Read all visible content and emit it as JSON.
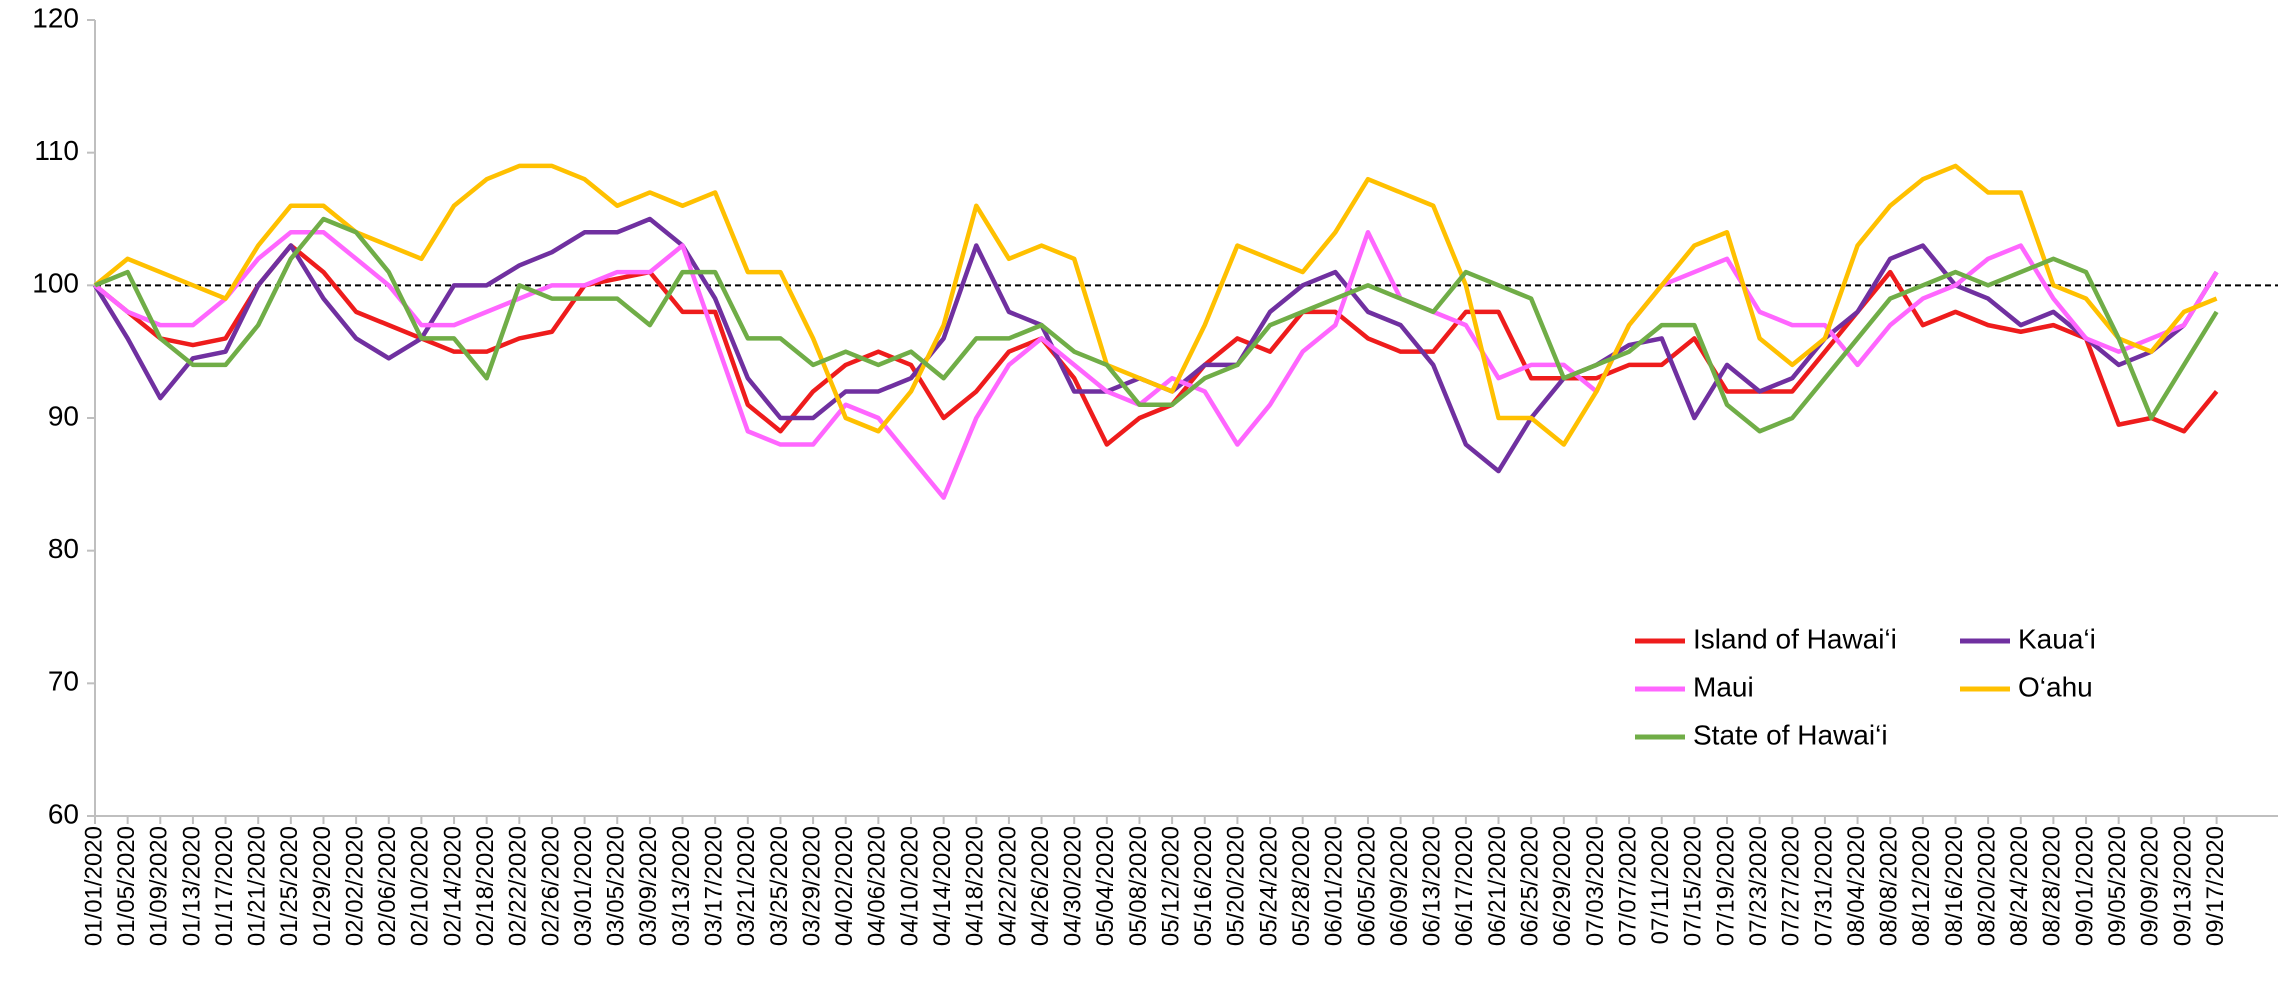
{
  "chart_data": {
    "type": "line",
    "categories": [
      "01/01/2020",
      "01/05/2020",
      "01/09/2020",
      "01/13/2020",
      "01/17/2020",
      "01/21/2020",
      "01/25/2020",
      "01/29/2020",
      "02/02/2020",
      "02/06/2020",
      "02/10/2020",
      "02/14/2020",
      "02/18/2020",
      "02/22/2020",
      "02/26/2020",
      "03/01/2020",
      "03/05/2020",
      "03/09/2020",
      "03/13/2020",
      "03/17/2020",
      "03/21/2020",
      "03/25/2020",
      "03/29/2020",
      "04/02/2020",
      "04/06/2020",
      "04/10/2020",
      "04/14/2020",
      "04/18/2020",
      "04/22/2020",
      "04/26/2020",
      "04/30/2020",
      "05/04/2020",
      "05/08/2020",
      "05/12/2020",
      "05/16/2020",
      "05/20/2020",
      "05/24/2020",
      "05/28/2020",
      "06/01/2020",
      "06/05/2020",
      "06/09/2020",
      "06/13/2020",
      "06/17/2020",
      "06/21/2020",
      "06/25/2020",
      "06/29/2020",
      "07/03/2020",
      "07/07/2020",
      "07/11/2020",
      "07/15/2020",
      "07/19/2020",
      "07/23/2020",
      "07/27/2020",
      "07/31/2020",
      "08/04/2020",
      "08/08/2020",
      "08/12/2020",
      "08/16/2020",
      "08/20/2020",
      "08/24/2020",
      "08/28/2020",
      "09/01/2020",
      "09/05/2020",
      "09/09/2020",
      "09/13/2020",
      "09/17/2020"
    ],
    "series": [
      {
        "name": "Island of Hawai‘i",
        "color": "#ee1c1c",
        "values": [
          100,
          98,
          96,
          95.5,
          96,
          100,
          103,
          101,
          98,
          97,
          96,
          95,
          95,
          96,
          96.5,
          100,
          100.5,
          101,
          98,
          98,
          91,
          89,
          92,
          94,
          95,
          94,
          90,
          92,
          95,
          96,
          93,
          88,
          90,
          91,
          94,
          96,
          95,
          98,
          98,
          96,
          95,
          95,
          98,
          98,
          93,
          93,
          93,
          94,
          94,
          96,
          92,
          92,
          92,
          95,
          98,
          101,
          97,
          98,
          97,
          96.5,
          97,
          96,
          89.5,
          90,
          89,
          92
        ]
      },
      {
        "name": "Kaua‘i",
        "color": "#7030a0",
        "values": [
          100,
          96,
          91.5,
          94.5,
          95,
          100,
          103,
          99,
          96,
          94.5,
          96,
          100,
          100,
          101.5,
          102.5,
          104,
          104,
          105,
          103,
          99,
          93,
          90,
          90,
          92,
          92,
          93,
          96,
          103,
          98,
          97,
          92,
          92,
          93,
          92,
          94,
          94,
          98,
          100,
          101,
          98,
          97,
          94,
          88,
          86,
          90,
          93,
          94,
          95.5,
          96,
          90,
          94,
          92,
          93,
          96,
          98,
          102,
          103,
          100,
          99,
          97,
          98,
          96,
          94,
          95,
          97,
          101
        ]
      },
      {
        "name": "Maui",
        "color": "#ff66ff",
        "values": [
          100,
          98,
          97,
          97,
          99,
          102,
          104,
          104,
          102,
          100,
          97,
          97,
          98,
          99,
          100,
          100,
          101,
          101,
          103,
          96,
          89,
          88,
          88,
          91,
          90,
          87,
          84,
          90,
          94,
          96,
          94,
          92,
          91,
          93,
          92,
          88,
          91,
          95,
          97,
          104,
          99,
          98,
          97,
          93,
          94,
          94,
          92,
          97,
          100,
          101,
          102,
          98,
          97,
          97,
          94,
          97,
          99,
          100,
          102,
          103,
          99,
          96,
          95,
          96,
          97,
          101
        ]
      },
      {
        "name": "O‘ahu",
        "color": "#ffc000",
        "values": [
          100,
          102,
          101,
          100,
          99,
          103,
          106,
          106,
          104,
          103,
          102,
          106,
          108,
          109,
          109,
          108,
          106,
          107,
          106,
          107,
          101,
          101,
          96,
          90,
          89,
          92,
          97,
          106,
          102,
          103,
          102,
          94,
          93,
          92,
          97,
          103,
          102,
          101,
          104,
          108,
          107,
          106,
          100,
          90,
          90,
          88,
          92,
          97,
          100,
          103,
          104,
          96,
          94,
          96,
          103,
          106,
          108,
          109,
          107,
          107,
          100,
          99,
          96,
          95,
          98,
          99
        ]
      },
      {
        "name": "State of Hawai‘i",
        "color": "#70ad47",
        "values": [
          100,
          101,
          96,
          94,
          94,
          97,
          102,
          105,
          104,
          101,
          96,
          96,
          93,
          100,
          99,
          99,
          99,
          97,
          101,
          101,
          96,
          96,
          94,
          95,
          94,
          95,
          93,
          96,
          96,
          97,
          95,
          94,
          91,
          91,
          93,
          94,
          97,
          98,
          99,
          100,
          99,
          98,
          101,
          100,
          99,
          93,
          94,
          95,
          97,
          97,
          91,
          89,
          90,
          93,
          96,
          99,
          100,
          101,
          100,
          101,
          102,
          101,
          96,
          90,
          94,
          98
        ]
      }
    ],
    "ylim": [
      60,
      120
    ],
    "yticks": [
      60,
      70,
      80,
      90,
      100,
      110,
      120
    ],
    "reference_line": 100
  }
}
